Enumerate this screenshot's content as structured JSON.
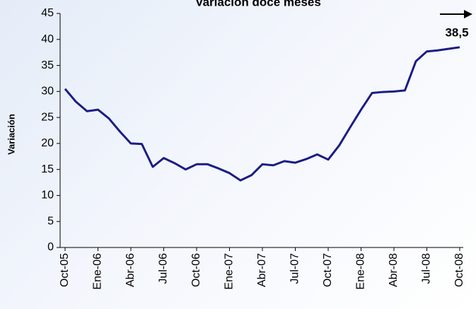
{
  "chart_data": {
    "type": "line",
    "title": "Variación doce meses",
    "y_label": "Variación",
    "categories": [
      "Oct-05",
      null,
      null,
      "Ene-06",
      null,
      null,
      "Abr-06",
      null,
      null,
      "Jul-06",
      null,
      null,
      "Oct-06",
      null,
      null,
      "Ene-07",
      null,
      null,
      "Abr-07",
      null,
      null,
      "Jul-07",
      null,
      null,
      "Oct-07",
      null,
      null,
      "Ene-08",
      null,
      null,
      "Abr-08",
      null,
      null,
      "Jul-08",
      null,
      null,
      "Oct-08"
    ],
    "series": [
      {
        "name": "Variación",
        "color": "#1c1c84",
        "values": [
          30.5,
          28,
          26.2,
          26.5,
          24.8,
          22.3,
          20,
          19.9,
          15.5,
          17.2,
          16.2,
          15,
          16,
          16,
          15.2,
          14.3,
          12.9,
          13.9,
          16,
          15.8,
          16.6,
          16.3,
          17,
          17.9,
          16.9,
          19.6,
          23.1,
          26.5,
          29.7,
          29.9,
          30,
          30.2,
          35.8,
          37.7,
          37.9,
          38.2,
          38.5
        ],
        "value_labels": [
          null,
          null,
          null,
          null,
          null,
          null,
          null,
          null,
          null,
          null,
          null,
          null,
          null,
          null,
          null,
          null,
          null,
          null,
          null,
          null,
          null,
          null,
          null,
          null,
          null,
          null,
          null,
          null,
          null,
          null,
          null,
          null,
          null,
          null,
          null,
          null,
          "38,5"
        ]
      }
    ],
    "ylim": [
      0,
      45
    ],
    "yticks": [
      0,
      5,
      10,
      15,
      20,
      25,
      30,
      35,
      40,
      45
    ]
  }
}
